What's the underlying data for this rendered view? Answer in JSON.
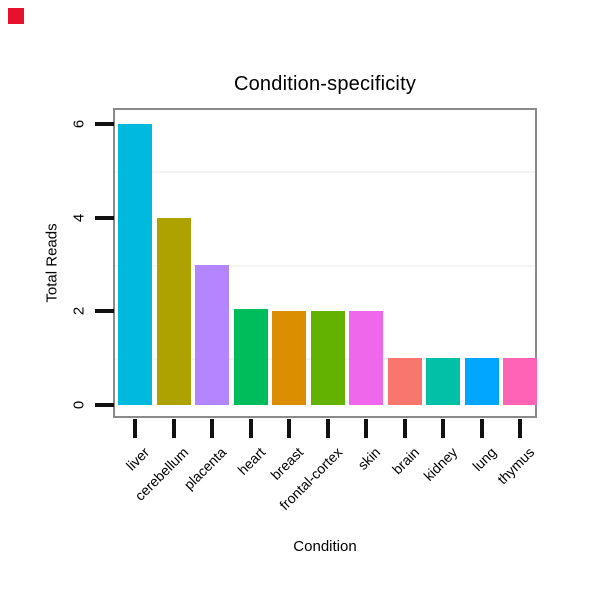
{
  "marker": {
    "color": "#e8112d"
  },
  "chart_data": {
    "type": "bar",
    "title": "Condition-specificity",
    "xlabel": "Condition",
    "ylabel": "Total Reads",
    "categories": [
      "liver",
      "cerebellum",
      "placenta",
      "heart",
      "breast",
      "frontal-cortex",
      "skin",
      "brain",
      "kidney",
      "lung",
      "thymus"
    ],
    "values": [
      6,
      4,
      3,
      2.05,
      2,
      2,
      2,
      1,
      1,
      1,
      1
    ],
    "bar_colors": [
      "#00BADE",
      "#AEA200",
      "#B385FF",
      "#00BD5C",
      "#DB8E00",
      "#64B200",
      "#EF67EB",
      "#F8766D",
      "#00C1A7",
      "#00A6FF",
      "#FF63B6"
    ],
    "yticks": [
      0,
      2,
      4,
      6
    ],
    "ytick_labels": [
      "0",
      "2",
      "4",
      "6"
    ],
    "gridlines_at": [
      1,
      3,
      5
    ],
    "ylim": [
      0,
      6.3
    ],
    "grid": "faint horizontal lines at odd values only",
    "legend": "none",
    "plot_border_color": "#8a8a8a",
    "grid_color": "#f4f4f4",
    "tick_color": "#111111",
    "background": "#ffffff"
  }
}
